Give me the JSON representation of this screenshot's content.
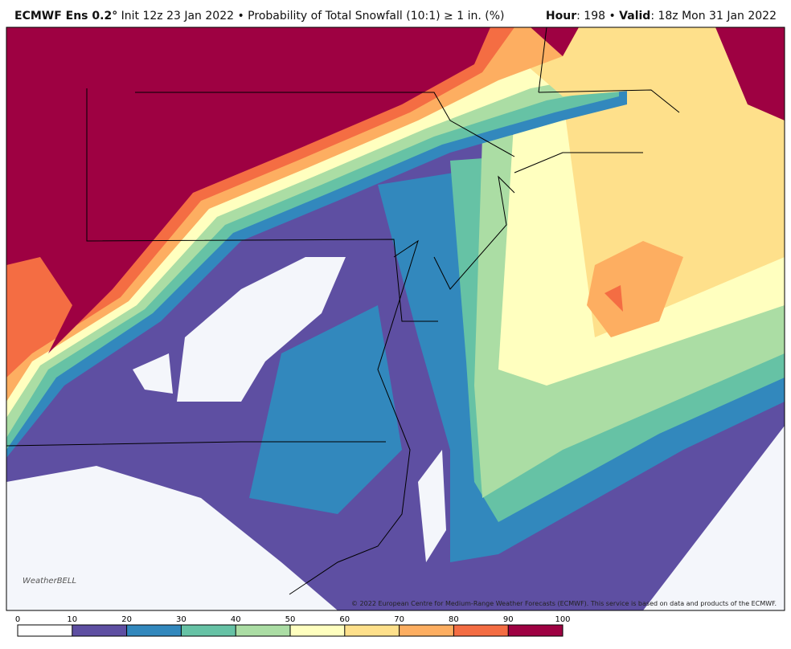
{
  "header": {
    "model": "ECMWF Ens 0.2°",
    "description": "Init 12z 23 Jan 2022 • Probability of Total Snowfall (10:1) ≥ 1 in. (%)",
    "valid_parts": [
      "Hour",
      ": 198 • ",
      "Valid",
      ": 18z Mon 31 Jan 2022"
    ]
  },
  "logo": "WeatherBELL",
  "copyright": "© 2022 European Centre for Medium-Range Weather Forecasts (ECMWF). This service is based on data and products of the ECMWF.",
  "colorbar": {
    "ticks": [
      0,
      10,
      20,
      30,
      40,
      50,
      60,
      70,
      80,
      90,
      100
    ],
    "colors": [
      "#ffffff",
      "#5e4fa2",
      "#3288bd",
      "#66c2a5",
      "#abdda4",
      "#ffffbf",
      "#fee08b",
      "#fdae61",
      "#f46d43",
      "#9e0142"
    ]
  }
}
